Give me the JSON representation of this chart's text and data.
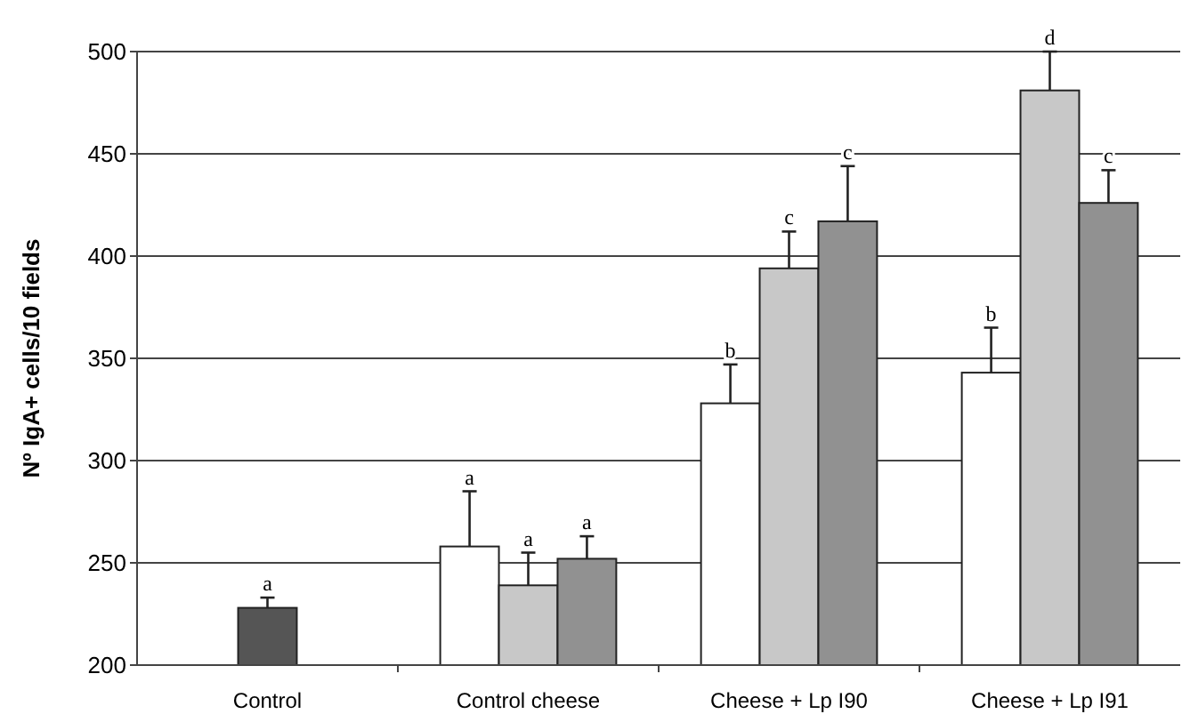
{
  "chart_data": {
    "type": "bar",
    "ylabel": "Nº IgA+ cells/10 fields",
    "categories": [
      "Control",
      "Control cheese",
      "Cheese + Lp I90",
      "Cheese + Lp I91"
    ],
    "series": [
      {
        "color": "#555555",
        "values": [
          228,
          null,
          null,
          null
        ],
        "errors": [
          5,
          null,
          null,
          null
        ],
        "value_labels": [
          "a",
          null,
          null,
          null
        ]
      },
      {
        "color": "#ffffff",
        "values": [
          null,
          258,
          328,
          343
        ],
        "errors": [
          null,
          27,
          19,
          22
        ],
        "value_labels": [
          null,
          "a",
          "b",
          "b"
        ]
      },
      {
        "color": "#c8c8c8",
        "values": [
          null,
          239,
          394,
          481
        ],
        "errors": [
          null,
          16,
          18,
          19
        ],
        "value_labels": [
          null,
          "a",
          "c",
          "d"
        ]
      },
      {
        "color": "#919191",
        "values": [
          null,
          252,
          417,
          426
        ],
        "errors": [
          null,
          11,
          27,
          16
        ],
        "value_labels": [
          null,
          "a",
          "c",
          "c"
        ]
      }
    ],
    "ylim": [
      200,
      500
    ],
    "yticks": [
      200,
      250,
      300,
      350,
      400,
      450,
      500
    ],
    "grid": "y"
  }
}
